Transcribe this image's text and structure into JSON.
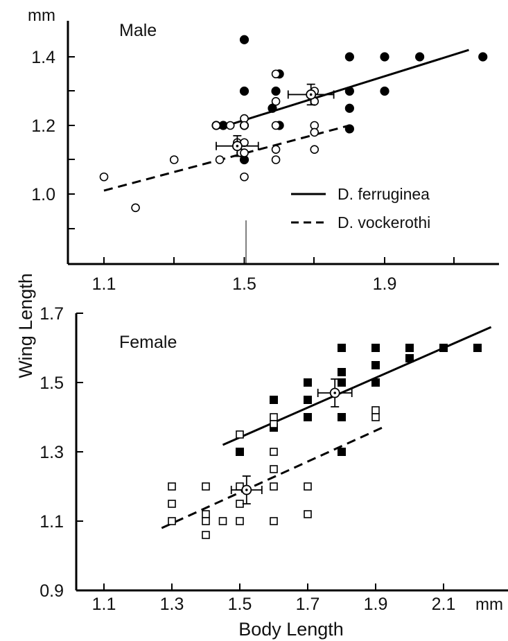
{
  "chart_data": [
    {
      "type": "scatter",
      "title": "Male",
      "unit_label": "mm",
      "xticks": [
        1.1,
        1.5,
        1.9
      ],
      "yticks": [
        1.0,
        1.2,
        1.4
      ],
      "ytick_labels": [
        "1.0",
        "1.2",
        "1.4"
      ],
      "xtick_labels": [
        "1.1",
        "1.5",
        "1.9"
      ],
      "xlim": [
        1.05,
        2.1
      ],
      "ylim": [
        0.8,
        1.47
      ],
      "legend": {
        "placement": "center-right",
        "entries": [
          {
            "label": "D. ferruginea",
            "line": "solid"
          },
          {
            "label": "D. vockerothi",
            "line": "dashed"
          }
        ]
      },
      "series": [
        {
          "name": "D. ferruginea",
          "marker": "filled-circle",
          "points": [
            [
              1.42,
              1.2
            ],
            [
              1.44,
              1.2
            ],
            [
              1.5,
              1.45
            ],
            [
              1.5,
              1.3
            ],
            [
              1.5,
              1.2
            ],
            [
              1.5,
              1.1
            ],
            [
              1.58,
              1.25
            ],
            [
              1.59,
              1.3
            ],
            [
              1.6,
              1.35
            ],
            [
              1.6,
              1.2
            ],
            [
              1.8,
              1.4
            ],
            [
              1.8,
              1.3
            ],
            [
              1.8,
              1.25
            ],
            [
              1.8,
              1.19
            ],
            [
              1.9,
              1.4
            ],
            [
              1.9,
              1.3
            ],
            [
              2.0,
              1.4
            ],
            [
              2.18,
              1.4
            ]
          ],
          "fit": {
            "style": "solid",
            "from": [
              1.42,
              1.19
            ],
            "to": [
              2.14,
              1.42
            ]
          },
          "mean": {
            "x": 1.69,
            "y": 1.29,
            "xerr": 0.065,
            "yerr": 0.03
          }
        },
        {
          "name": "D. vockerothi",
          "marker": "open-circle",
          "points": [
            [
              1.1,
              1.05
            ],
            [
              1.19,
              0.96
            ],
            [
              1.3,
              1.1
            ],
            [
              1.42,
              1.2
            ],
            [
              1.43,
              1.1
            ],
            [
              1.46,
              1.2
            ],
            [
              1.48,
              1.15
            ],
            [
              1.49,
              1.12
            ],
            [
              1.5,
              1.22
            ],
            [
              1.5,
              1.2
            ],
            [
              1.5,
              1.15
            ],
            [
              1.5,
              1.12
            ],
            [
              1.5,
              1.05
            ],
            [
              1.59,
              1.35
            ],
            [
              1.59,
              1.27
            ],
            [
              1.59,
              1.2
            ],
            [
              1.59,
              1.13
            ],
            [
              1.59,
              1.1
            ],
            [
              1.7,
              1.3
            ],
            [
              1.7,
              1.27
            ],
            [
              1.7,
              1.2
            ],
            [
              1.7,
              1.18
            ],
            [
              1.7,
              1.13
            ]
          ],
          "fit": {
            "style": "dashed",
            "from": [
              1.1,
              1.01
            ],
            "to": [
              1.8,
              1.2
            ]
          },
          "mean": {
            "x": 1.48,
            "y": 1.14,
            "xerr": 0.06,
            "yerr": 0.03
          }
        }
      ]
    },
    {
      "type": "scatter",
      "title": "Female",
      "xlabel": "Body  Length",
      "ylabel": "Wing  Length",
      "unit_label": "mm",
      "xticks": [
        1.1,
        1.3,
        1.5,
        1.7,
        1.9,
        2.1
      ],
      "yticks": [
        0.9,
        1.1,
        1.3,
        1.5,
        1.7
      ],
      "xtick_labels": [
        "1.1",
        "1.3",
        "1.5",
        "1.7",
        "1.9",
        "2.1"
      ],
      "ytick_labels": [
        "0.9",
        "1.1",
        "1.3",
        "1.5",
        "1.7"
      ],
      "xlim": [
        1.0,
        2.26
      ],
      "ylim": [
        0.9,
        1.7
      ],
      "series": [
        {
          "name": "D. ferruginea",
          "marker": "filled-square",
          "points": [
            [
              1.5,
              1.3
            ],
            [
              1.6,
              1.45
            ],
            [
              1.6,
              1.37
            ],
            [
              1.7,
              1.5
            ],
            [
              1.7,
              1.45
            ],
            [
              1.7,
              1.4
            ],
            [
              1.8,
              1.6
            ],
            [
              1.8,
              1.53
            ],
            [
              1.8,
              1.5
            ],
            [
              1.8,
              1.4
            ],
            [
              1.8,
              1.3
            ],
            [
              1.9,
              1.6
            ],
            [
              1.9,
              1.55
            ],
            [
              1.9,
              1.5
            ],
            [
              2.0,
              1.6
            ],
            [
              2.0,
              1.57
            ],
            [
              2.1,
              1.6
            ],
            [
              2.2,
              1.6
            ]
          ],
          "fit": {
            "style": "solid",
            "from": [
              1.45,
              1.32
            ],
            "to": [
              2.24,
              1.66
            ]
          },
          "mean": {
            "x": 1.78,
            "y": 1.47,
            "xerr": 0.05,
            "yerr": 0.04
          }
        },
        {
          "name": "D. vockerothi",
          "marker": "open-square",
          "points": [
            [
              1.3,
              1.2
            ],
            [
              1.3,
              1.15
            ],
            [
              1.3,
              1.1
            ],
            [
              1.4,
              1.2
            ],
            [
              1.4,
              1.12
            ],
            [
              1.4,
              1.1
            ],
            [
              1.4,
              1.06
            ],
            [
              1.45,
              1.1
            ],
            [
              1.5,
              1.35
            ],
            [
              1.5,
              1.2
            ],
            [
              1.5,
              1.15
            ],
            [
              1.5,
              1.1
            ],
            [
              1.6,
              1.4
            ],
            [
              1.6,
              1.38
            ],
            [
              1.6,
              1.3
            ],
            [
              1.6,
              1.25
            ],
            [
              1.6,
              1.2
            ],
            [
              1.6,
              1.1
            ],
            [
              1.7,
              1.2
            ],
            [
              1.7,
              1.12
            ],
            [
              1.9,
              1.42
            ],
            [
              1.9,
              1.4
            ]
          ],
          "fit": {
            "style": "dashed",
            "from": [
              1.27,
              1.08
            ],
            "to": [
              1.92,
              1.37
            ]
          },
          "mean": {
            "x": 1.52,
            "y": 1.19,
            "xerr": 0.045,
            "yerr": 0.04
          }
        }
      ]
    }
  ]
}
